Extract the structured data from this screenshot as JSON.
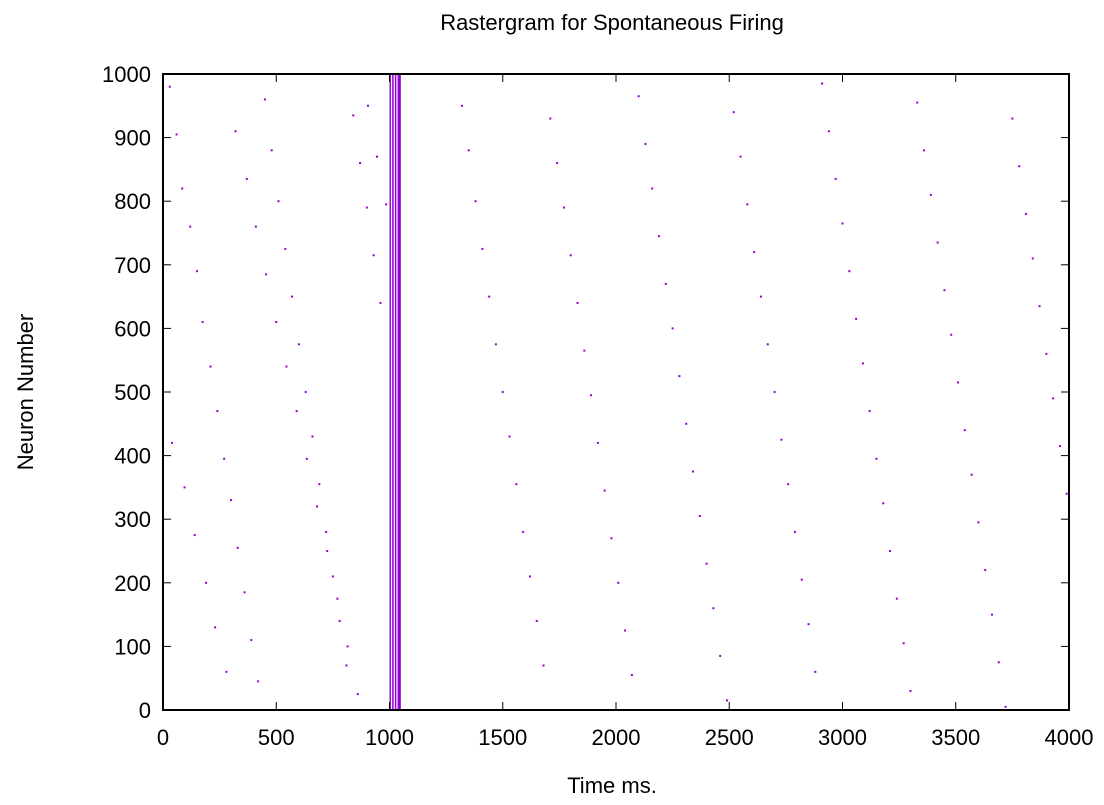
{
  "chart_data": {
    "type": "scatter",
    "title": "Rastergram for Spontaneous Firing",
    "xlabel": "Time ms.",
    "ylabel": "Neuron Number",
    "xlim": [
      0,
      4000
    ],
    "ylim": [
      0,
      1000
    ],
    "x_ticks": [
      0,
      500,
      1000,
      1500,
      2000,
      2500,
      3000,
      3500,
      4000
    ],
    "y_ticks": [
      0,
      100,
      200,
      300,
      400,
      500,
      600,
      700,
      800,
      900,
      1000
    ],
    "grid": false,
    "legend": "none",
    "series": [
      {
        "marker_color": "#9400d3",
        "description_points": "sparse dot raster across neurons 0-1000",
        "dense_band_x": [
          1000,
          1050
        ],
        "silent_interval_x": [
          1050,
          1320
        ],
        "points": [
          [
            30,
            980
          ],
          [
            60,
            905
          ],
          [
            85,
            820
          ],
          [
            120,
            760
          ],
          [
            150,
            690
          ],
          [
            175,
            610
          ],
          [
            210,
            540
          ],
          [
            240,
            470
          ],
          [
            270,
            395
          ],
          [
            300,
            330
          ],
          [
            330,
            255
          ],
          [
            360,
            185
          ],
          [
            390,
            110
          ],
          [
            420,
            45
          ],
          [
            450,
            960
          ],
          [
            480,
            880
          ],
          [
            510,
            800
          ],
          [
            540,
            725
          ],
          [
            570,
            650
          ],
          [
            600,
            575
          ],
          [
            630,
            500
          ],
          [
            660,
            430
          ],
          [
            690,
            355
          ],
          [
            720,
            280
          ],
          [
            750,
            210
          ],
          [
            780,
            140
          ],
          [
            810,
            70
          ],
          [
            840,
            935
          ],
          [
            870,
            860
          ],
          [
            900,
            790
          ],
          [
            930,
            715
          ],
          [
            960,
            640
          ],
          [
            40,
            420
          ],
          [
            95,
            350
          ],
          [
            140,
            275
          ],
          [
            190,
            200
          ],
          [
            230,
            130
          ],
          [
            280,
            60
          ],
          [
            320,
            910
          ],
          [
            370,
            835
          ],
          [
            410,
            760
          ],
          [
            455,
            685
          ],
          [
            500,
            610
          ],
          [
            545,
            540
          ],
          [
            590,
            470
          ],
          [
            635,
            395
          ],
          [
            680,
            320
          ],
          [
            725,
            250
          ],
          [
            770,
            175
          ],
          [
            815,
            100
          ],
          [
            860,
            25
          ],
          [
            905,
            950
          ],
          [
            945,
            870
          ],
          [
            985,
            795
          ],
          [
            1320,
            950
          ],
          [
            1350,
            880
          ],
          [
            1380,
            800
          ],
          [
            1410,
            725
          ],
          [
            1440,
            650
          ],
          [
            1470,
            575
          ],
          [
            1500,
            500
          ],
          [
            1530,
            430
          ],
          [
            1560,
            355
          ],
          [
            1590,
            280
          ],
          [
            1620,
            210
          ],
          [
            1650,
            140
          ],
          [
            1680,
            70
          ],
          [
            1710,
            930
          ],
          [
            1740,
            860
          ],
          [
            1770,
            790
          ],
          [
            1800,
            715
          ],
          [
            1830,
            640
          ],
          [
            1860,
            565
          ],
          [
            1890,
            495
          ],
          [
            1920,
            420
          ],
          [
            1950,
            345
          ],
          [
            1980,
            270
          ],
          [
            2010,
            200
          ],
          [
            2040,
            125
          ],
          [
            2070,
            55
          ],
          [
            2100,
            965
          ],
          [
            2130,
            890
          ],
          [
            2160,
            820
          ],
          [
            2190,
            745
          ],
          [
            2220,
            670
          ],
          [
            2250,
            600
          ],
          [
            2280,
            525
          ],
          [
            2310,
            450
          ],
          [
            2340,
            375
          ],
          [
            2370,
            305
          ],
          [
            2400,
            230
          ],
          [
            2430,
            160
          ],
          [
            2460,
            85
          ],
          [
            2490,
            15
          ],
          [
            2520,
            940
          ],
          [
            2550,
            870
          ],
          [
            2580,
            795
          ],
          [
            2610,
            720
          ],
          [
            2640,
            650
          ],
          [
            2670,
            575
          ],
          [
            2700,
            500
          ],
          [
            2730,
            425
          ],
          [
            2760,
            355
          ],
          [
            2790,
            280
          ],
          [
            2820,
            205
          ],
          [
            2850,
            135
          ],
          [
            2880,
            60
          ],
          [
            2910,
            985
          ],
          [
            2940,
            910
          ],
          [
            2970,
            835
          ],
          [
            3000,
            765
          ],
          [
            3030,
            690
          ],
          [
            3060,
            615
          ],
          [
            3090,
            545
          ],
          [
            3120,
            470
          ],
          [
            3150,
            395
          ],
          [
            3180,
            325
          ],
          [
            3210,
            250
          ],
          [
            3240,
            175
          ],
          [
            3270,
            105
          ],
          [
            3300,
            30
          ],
          [
            3330,
            955
          ],
          [
            3360,
            880
          ],
          [
            3390,
            810
          ],
          [
            3420,
            735
          ],
          [
            3450,
            660
          ],
          [
            3480,
            590
          ],
          [
            3510,
            515
          ],
          [
            3540,
            440
          ],
          [
            3570,
            370
          ],
          [
            3600,
            295
          ],
          [
            3630,
            220
          ],
          [
            3660,
            150
          ],
          [
            3690,
            75
          ],
          [
            3720,
            5
          ],
          [
            3750,
            930
          ],
          [
            3780,
            855
          ],
          [
            3810,
            780
          ],
          [
            3840,
            710
          ],
          [
            3870,
            635
          ],
          [
            3900,
            560
          ],
          [
            3930,
            490
          ],
          [
            3960,
            415
          ],
          [
            3990,
            340
          ]
        ]
      }
    ]
  }
}
